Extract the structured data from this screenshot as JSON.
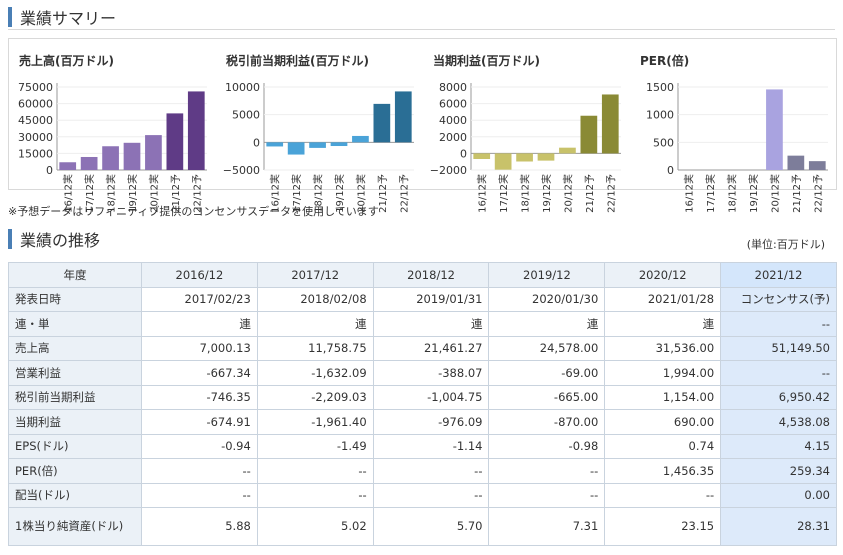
{
  "section1": {
    "title": "業績サマリー"
  },
  "charts": [
    {
      "title": "売上高(百万ドル)",
      "color": "#8c72b5",
      "forecast_color": "#5f3b86",
      "yticks": [
        "75000",
        "60000",
        "45000",
        "30000",
        "15000",
        "0"
      ],
      "chart_data": {
        "type": "bar",
        "categories": [
          "16/12実",
          "17/12実",
          "18/12実",
          "19/12実",
          "20/12実",
          "21/12予",
          "22/12予"
        ],
        "values": [
          7000,
          11759,
          21461,
          24578,
          31536,
          51150,
          71000
        ],
        "ylim": [
          0,
          75000
        ]
      }
    },
    {
      "title": "税引前当期利益(百万ドル)",
      "color": "#4aa3d8",
      "forecast_color": "#2a6e95",
      "yticks": [
        "10000",
        "5000",
        "0",
        "−5000"
      ],
      "chart_data": {
        "type": "bar",
        "categories": [
          "16/12実",
          "17/12実",
          "18/12実",
          "19/12実",
          "20/12実",
          "21/12予",
          "22/12予"
        ],
        "values": [
          -746,
          -2209,
          -1005,
          -665,
          1154,
          6950,
          9200
        ],
        "ylim": [
          -5000,
          10000
        ]
      }
    },
    {
      "title": "当期利益(百万ドル)",
      "color": "#c8c26a",
      "forecast_color": "#8a8a35",
      "yticks": [
        "8000",
        "6000",
        "4000",
        "2000",
        "0",
        "−2000"
      ],
      "chart_data": {
        "type": "bar",
        "categories": [
          "16/12実",
          "17/12実",
          "18/12実",
          "19/12実",
          "20/12実",
          "21/12予",
          "22/12予"
        ],
        "values": [
          -675,
          -1961,
          -976,
          -870,
          690,
          4538,
          7100
        ],
        "ylim": [
          -2000,
          8000
        ]
      }
    },
    {
      "title": "PER(倍)",
      "color": "#a9a3e0",
      "forecast_color": "#7d7d9a",
      "yticks": [
        "1500",
        "1000",
        "500",
        "0"
      ],
      "chart_data": {
        "type": "bar",
        "categories": [
          "16/12実",
          "17/12実",
          "18/12実",
          "19/12実",
          "20/12実",
          "21/12予",
          "22/12予"
        ],
        "values": [
          null,
          null,
          null,
          null,
          1456.35,
          259.34,
          160
        ],
        "ylim": [
          0,
          1500
        ]
      }
    }
  ],
  "note": "※予想データはリフィニティブ提供のコンセンサスデータを使用しています",
  "section2": {
    "title": "業績の推移",
    "unit": "(単位:百万ドル)"
  },
  "table": {
    "year_label": "年度",
    "years": [
      "2016/12",
      "2017/12",
      "2018/12",
      "2019/12",
      "2020/12",
      "2021/12"
    ],
    "rows": [
      {
        "label": "発表日時",
        "values": [
          "2017/02/23",
          "2018/02/08",
          "2019/01/31",
          "2020/01/30",
          "2021/01/28",
          "コンセンサス(予)"
        ]
      },
      {
        "label": "連・単",
        "values": [
          "連",
          "連",
          "連",
          "連",
          "連",
          "--"
        ]
      },
      {
        "label": "売上高",
        "values": [
          "7,000.13",
          "11,758.75",
          "21,461.27",
          "24,578.00",
          "31,536.00",
          "51,149.50"
        ]
      },
      {
        "label": "営業利益",
        "values": [
          "-667.34",
          "-1,632.09",
          "-388.07",
          "-69.00",
          "1,994.00",
          "--"
        ]
      },
      {
        "label": "税引前当期利益",
        "values": [
          "-746.35",
          "-2,209.03",
          "-1,004.75",
          "-665.00",
          "1,154.00",
          "6,950.42"
        ]
      },
      {
        "label": "当期利益",
        "values": [
          "-674.91",
          "-1,961.40",
          "-976.09",
          "-870.00",
          "690.00",
          "4,538.08"
        ]
      },
      {
        "label": "EPS(ドル)",
        "values": [
          "-0.94",
          "-1.49",
          "-1.14",
          "-0.98",
          "0.74",
          "4.15"
        ]
      },
      {
        "label": "PER(倍)",
        "values": [
          "--",
          "--",
          "--",
          "--",
          "1,456.35",
          "259.34"
        ]
      },
      {
        "label": "配当(ドル)",
        "values": [
          "--",
          "--",
          "--",
          "--",
          "--",
          "0.00"
        ]
      },
      {
        "label": "1株当り純資産(ドル)",
        "values": [
          "5.88",
          "5.02",
          "5.70",
          "7.31",
          "23.15",
          "28.31"
        ]
      }
    ]
  }
}
